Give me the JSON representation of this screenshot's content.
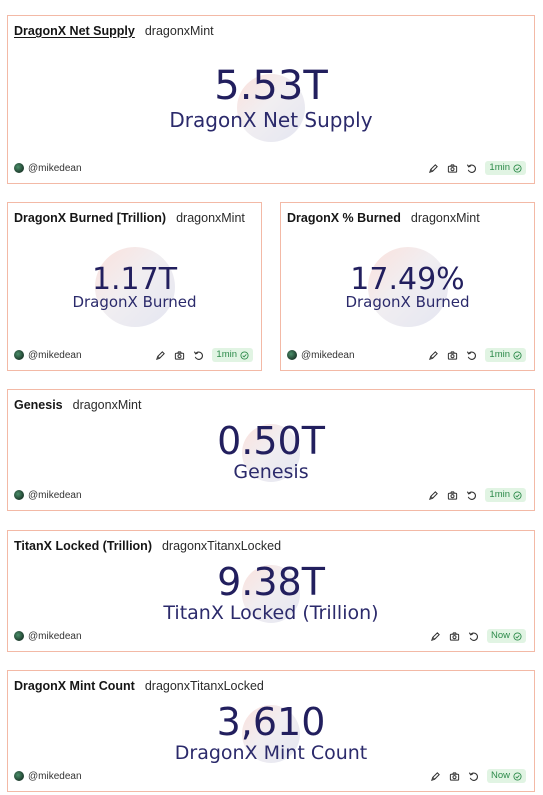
{
  "cards": [
    {
      "title": "DragonX Net Supply",
      "query": "dragonxMint",
      "value": "5.53T",
      "label": "DragonX Net Supply",
      "author": "@mikedean",
      "refresh": "1min"
    },
    {
      "title": "DragonX Burned [Trillion)",
      "query": "dragonxMint",
      "value": "1.17T",
      "label": "DragonX Burned",
      "author": "@mikedean",
      "refresh": "1min"
    },
    {
      "title": "DragonX % Burned",
      "query": "dragonxMint",
      "value": "17.49%",
      "label": "DragonX Burned",
      "author": "@mikedean",
      "refresh": "1min"
    },
    {
      "title": "Genesis",
      "query": "dragonxMint",
      "value": "0.50T",
      "label": "Genesis",
      "author": "@mikedean",
      "refresh": "1min"
    },
    {
      "title": "TitanX Locked (Trillion)",
      "query": "dragonxTitanxLocked",
      "value": "9.38T",
      "label": "TitanX Locked (Trillion)",
      "author": "@mikedean",
      "refresh": "Now"
    },
    {
      "title": "DragonX Mint Count",
      "query": "dragonxTitanxLocked",
      "value": "3,610",
      "label": "DragonX Mint Count",
      "author": "@mikedean",
      "refresh": "Now"
    }
  ],
  "icons": {
    "author_avatar": "avatar",
    "edit": "pencil-icon",
    "screenshot": "camera-icon",
    "refresh": "refresh-icon",
    "status": "check-circle-icon"
  },
  "colors": {
    "border": "#f3b9a6",
    "value": "#221f5e",
    "badge_bg": "#e1f4e3",
    "badge_text": "#2e8b4b"
  }
}
